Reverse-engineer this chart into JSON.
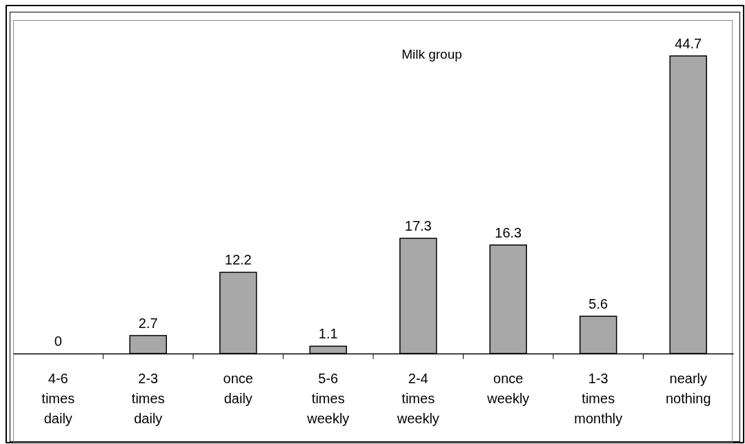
{
  "chart_data": {
    "type": "bar",
    "title": "Milk group",
    "categories": [
      "4-6 times daily",
      "2-3 times daily",
      "once daily",
      "5-6 times weekly",
      "2-4 times weekly",
      "once weekly",
      "1-3 times monthly",
      "nearly nothing"
    ],
    "values": [
      0,
      2.7,
      12.2,
      1.1,
      17.3,
      16.3,
      5.6,
      44.7
    ],
    "color": "#a8a8a8",
    "data_labels": true,
    "tick_labels": "x"
  }
}
